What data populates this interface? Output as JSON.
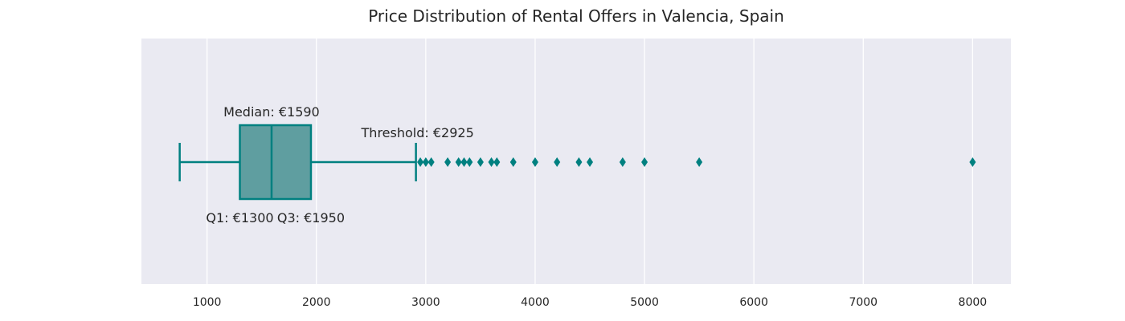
{
  "chart_data": {
    "type": "box",
    "orientation": "horizontal",
    "title": "Price Distribution of Rental Offers in Valencia, Spain",
    "xlabel": "",
    "ylabel": "",
    "xlim": [
      400,
      8350
    ],
    "xticks": [
      1000,
      2000,
      3000,
      4000,
      5000,
      6000,
      7000,
      8000
    ],
    "grid": "vertical",
    "whisker_low": 750,
    "q1": 1300,
    "median": 1590,
    "q3": 1950,
    "whisker_high": 2910,
    "outliers": [
      2950,
      3000,
      3050,
      3200,
      3300,
      3350,
      3400,
      3500,
      3600,
      3650,
      3800,
      4000,
      4200,
      4400,
      4500,
      4800,
      5000,
      5500,
      8000
    ],
    "annotations": {
      "median": "Median: €1590",
      "q1": "Q1: €1300",
      "q3": "Q3: €1950",
      "threshold": "Threshold: €2925"
    },
    "colors": {
      "box_fill": "#5f9ea0",
      "line": "#008080",
      "plot_bg": "#eaeaf2",
      "grid": "#ffffff"
    }
  }
}
